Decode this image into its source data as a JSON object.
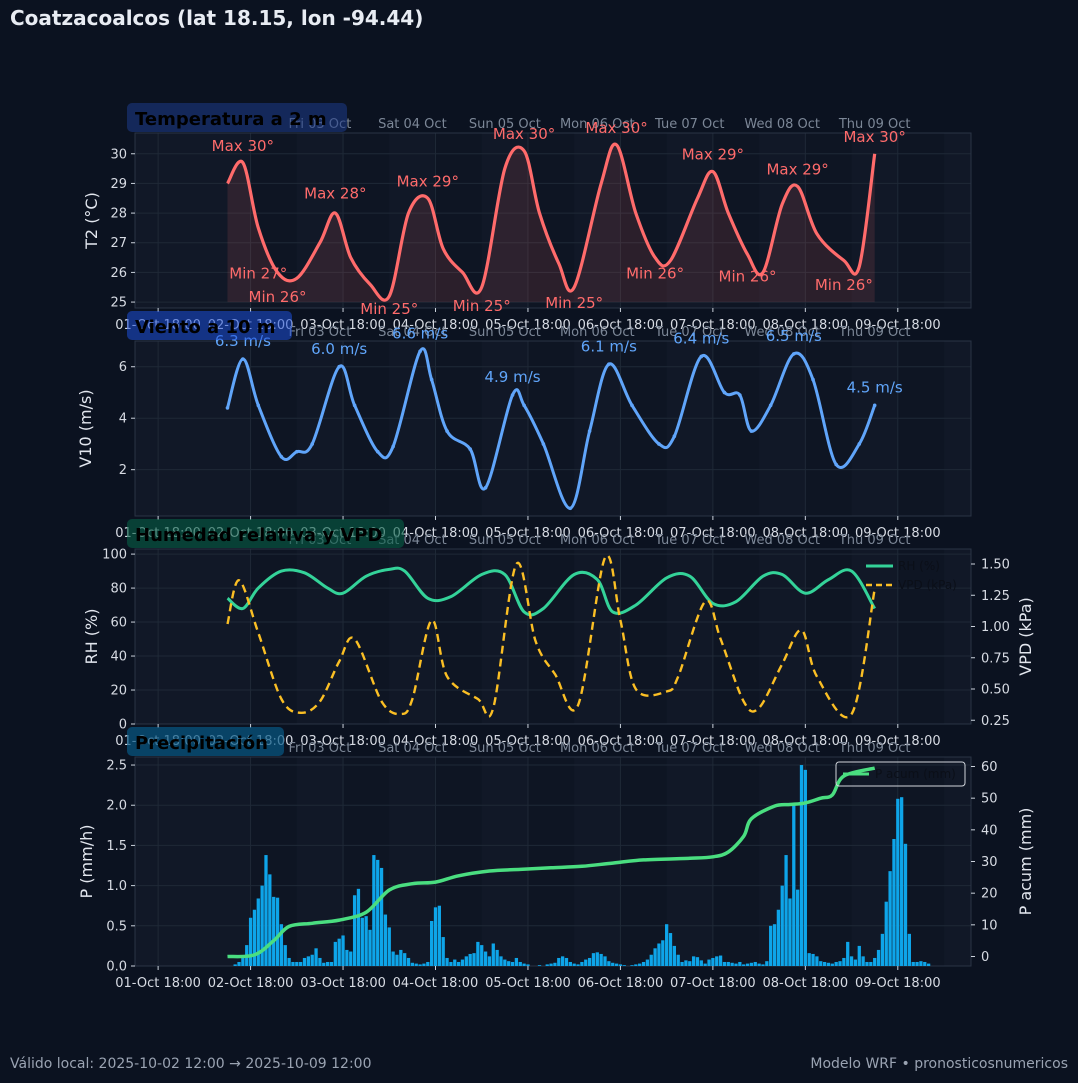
{
  "header": {
    "title": "Coatzacoalcos (lat 18.15, lon -94.44)"
  },
  "footer": {
    "left": "Válido local: 2025-10-02 12:00 → 2025-10-09 12:00",
    "right": "Modelo WRF • pronosticosnumericos"
  },
  "colors": {
    "background": "#0b1220",
    "panel": "#111827",
    "temperature": "#ff6b6b",
    "wind": "#60a5fa",
    "rh": "#34d399",
    "vpd": "#fbbf24",
    "precip_bars": "#0ea5e9",
    "precip_cum": "#4ade80"
  },
  "time_axis": {
    "start": "2025-10-01 12:00",
    "end": "2025-10-10 13:00",
    "first_data": "2025-10-02 12:00",
    "last_data": "2025-10-09 12:00",
    "tick_labels": [
      "01-Oct 18:00",
      "02-Oct 18:00",
      "03-Oct 18:00",
      "04-Oct 18:00",
      "05-Oct 18:00",
      "06-Oct 18:00",
      "07-Oct 18:00",
      "08-Oct 18:00",
      "09-Oct 18:00"
    ],
    "day_labels": [
      "Fri 03 Oct",
      "Sat 04 Oct",
      "Sun 05 Oct",
      "Mon 06 Oct",
      "Tue 07 Oct",
      "Wed 08 Oct",
      "Thu 09 Oct"
    ]
  },
  "chart_data": [
    {
      "type": "line",
      "title": "Temperatura a 2 m",
      "ylabel": "T2 (°C)",
      "ylim": [
        24.8,
        30.7
      ],
      "yticks": [
        25,
        26,
        27,
        28,
        29,
        30
      ],
      "series": [
        {
          "x": [
            "2025-10-02 12:00",
            "2025-10-02 16:00",
            "2025-10-02 20:00",
            "2025-10-03 01:00",
            "2025-10-03 06:00",
            "2025-10-03 12:00",
            "2025-10-03 16:00",
            "2025-10-03 20:00",
            "2025-10-04 01:00",
            "2025-10-04 06:00",
            "2025-10-04 11:00",
            "2025-10-04 16:00",
            "2025-10-04 20:00",
            "2025-10-05 01:00",
            "2025-10-05 06:00",
            "2025-10-05 12:00",
            "2025-10-05 17:00",
            "2025-10-05 21:00",
            "2025-10-06 02:00",
            "2025-10-06 06:00",
            "2025-10-06 13:00",
            "2025-10-06 17:00",
            "2025-10-06 22:00",
            "2025-10-07 03:00",
            "2025-10-07 07:00",
            "2025-10-07 14:00",
            "2025-10-07 18:00",
            "2025-10-07 22:00",
            "2025-10-08 03:00",
            "2025-10-08 07:00",
            "2025-10-08 12:00",
            "2025-10-08 16:00",
            "2025-10-08 21:00",
            "2025-10-09 04:00",
            "2025-10-09 08:00",
            "2025-10-09 12:00"
          ],
          "y": [
            29.0,
            29.7,
            27.5,
            26.0,
            25.8,
            27.0,
            28.0,
            26.5,
            25.6,
            25.2,
            28.0,
            28.5,
            26.8,
            26.0,
            25.5,
            29.5,
            30.1,
            28.0,
            26.3,
            25.5,
            29.0,
            30.3,
            28.0,
            26.5,
            26.4,
            28.5,
            29.4,
            28.0,
            26.6,
            26.0,
            28.3,
            28.9,
            27.3,
            26.4,
            26.2,
            30.0
          ]
        }
      ],
      "annotations": [
        {
          "text": "Max 30°",
          "x": "2025-10-02 16:00",
          "y": 30.1
        },
        {
          "text": "Min 27°",
          "x": "2025-10-02 20:00",
          "y": 25.8
        },
        {
          "text": "Min 26°",
          "x": "2025-10-03 01:00",
          "y": 25.0
        },
        {
          "text": "Max 28°",
          "x": "2025-10-03 16:00",
          "y": 28.5
        },
        {
          "text": "Min 25°",
          "x": "2025-10-04 06:00",
          "y": 24.6
        },
        {
          "text": "Max 29°",
          "x": "2025-10-04 16:00",
          "y": 28.9
        },
        {
          "text": "Min 25°",
          "x": "2025-10-05 06:00",
          "y": 24.7
        },
        {
          "text": "Max 30°",
          "x": "2025-10-05 17:00",
          "y": 30.5
        },
        {
          "text": "Min 25°",
          "x": "2025-10-06 06:00",
          "y": 24.8
        },
        {
          "text": "Max 30°",
          "x": "2025-10-06 17:00",
          "y": 30.7
        },
        {
          "text": "Min 26°",
          "x": "2025-10-07 03:00",
          "y": 25.8
        },
        {
          "text": "Max 29°",
          "x": "2025-10-07 18:00",
          "y": 29.8
        },
        {
          "text": "Min 26°",
          "x": "2025-10-08 03:00",
          "y": 25.7
        },
        {
          "text": "Max 29°",
          "x": "2025-10-08 16:00",
          "y": 29.3
        },
        {
          "text": "Min 26°",
          "x": "2025-10-09 04:00",
          "y": 25.4
        },
        {
          "text": "Max 30°",
          "x": "2025-10-09 12:00",
          "y": 30.4
        }
      ]
    },
    {
      "type": "line",
      "title": "Viento a 10 m",
      "ylabel": "V10 (m/s)",
      "ylim": [
        0.2,
        7.0
      ],
      "yticks": [
        2,
        4,
        6
      ],
      "series": [
        {
          "x": [
            "2025-10-02 12:00",
            "2025-10-02 16:00",
            "2025-10-02 20:00",
            "2025-10-03 02:00",
            "2025-10-03 06:00",
            "2025-10-03 10:00",
            "2025-10-03 17:00",
            "2025-10-03 21:00",
            "2025-10-04 03:00",
            "2025-10-04 07:00",
            "2025-10-04 14:00",
            "2025-10-04 17:00",
            "2025-10-04 21:00",
            "2025-10-05 03:00",
            "2025-10-05 07:00",
            "2025-10-05 14:00",
            "2025-10-05 17:00",
            "2025-10-05 22:00",
            "2025-10-06 05:00",
            "2025-10-06 10:00",
            "2025-10-06 15:00",
            "2025-10-06 21:00",
            "2025-10-07 04:00",
            "2025-10-07 08:00",
            "2025-10-07 15:00",
            "2025-10-07 21:00",
            "2025-10-08 01:00",
            "2025-10-08 04:00",
            "2025-10-08 09:00",
            "2025-10-08 15:00",
            "2025-10-08 20:00",
            "2025-10-09 02:00",
            "2025-10-09 08:00",
            "2025-10-09 12:00"
          ],
          "y": [
            4.4,
            6.3,
            4.5,
            2.5,
            2.7,
            3.0,
            6.0,
            4.5,
            2.7,
            2.9,
            6.6,
            5.5,
            3.5,
            2.8,
            1.3,
            4.9,
            4.5,
            3.0,
            0.5,
            3.5,
            6.1,
            4.5,
            3.0,
            3.3,
            6.4,
            5.0,
            4.9,
            3.5,
            4.5,
            6.5,
            5.5,
            2.2,
            3.0,
            4.5
          ]
        }
      ],
      "annotations": [
        {
          "text": "6.3 m/s",
          "x": "2025-10-02 16:00",
          "y": 6.8
        },
        {
          "text": "6.0 m/s",
          "x": "2025-10-03 17:00",
          "y": 6.5
        },
        {
          "text": "6.6 m/s",
          "x": "2025-10-04 14:00",
          "y": 7.1
        },
        {
          "text": "4.9 m/s",
          "x": "2025-10-05 14:00",
          "y": 5.4
        },
        {
          "text": "6.1 m/s",
          "x": "2025-10-06 15:00",
          "y": 6.6
        },
        {
          "text": "6.4 m/s",
          "x": "2025-10-07 15:00",
          "y": 6.9
        },
        {
          "text": "6.5 m/s",
          "x": "2025-10-08 15:00",
          "y": 7.0
        },
        {
          "text": "4.5 m/s",
          "x": "2025-10-09 12:00",
          "y": 5.0
        }
      ]
    },
    {
      "type": "line",
      "title": "Humedad relativa y VPD",
      "ylabel": "RH (%)",
      "ylabel_right": "VPD (kPa)",
      "ylim": [
        0,
        103
      ],
      "ylim_right": [
        0.22,
        1.62
      ],
      "yticks": [
        0,
        20,
        40,
        60,
        80,
        100
      ],
      "yticks_right": [
        0.25,
        0.5,
        0.75,
        1.0,
        1.25,
        1.5
      ],
      "legend": {
        "position": "top-right",
        "entries": [
          "RH (%)",
          "VPD (kPa)"
        ]
      },
      "series": [
        {
          "name": "RH (%)",
          "axis": "left",
          "x": [
            "2025-10-02 12:00",
            "2025-10-02 16:00",
            "2025-10-02 20:00",
            "2025-10-03 02:00",
            "2025-10-03 08:00",
            "2025-10-03 14:00",
            "2025-10-03 18:00",
            "2025-10-04 00:00",
            "2025-10-04 06:00",
            "2025-10-04 10:00",
            "2025-10-04 16:00",
            "2025-10-04 22:00",
            "2025-10-05 06:00",
            "2025-10-05 12:00",
            "2025-10-05 17:00",
            "2025-10-05 22:00",
            "2025-10-06 06:00",
            "2025-10-06 12:00",
            "2025-10-06 16:00",
            "2025-10-06 22:00",
            "2025-10-07 06:00",
            "2025-10-07 12:00",
            "2025-10-07 18:00",
            "2025-10-08 00:00",
            "2025-10-08 07:00",
            "2025-10-08 12:00",
            "2025-10-08 18:00",
            "2025-10-09 00:00",
            "2025-10-09 06:00",
            "2025-10-09 12:00"
          ],
          "y": [
            74,
            68,
            80,
            90,
            89,
            80,
            77,
            87,
            91,
            90,
            74,
            75,
            88,
            88,
            66,
            68,
            88,
            85,
            66,
            70,
            86,
            87,
            71,
            72,
            87,
            88,
            77,
            85,
            90,
            68
          ]
        },
        {
          "name": "VPD (kPa)",
          "axis": "right",
          "x": [
            "2025-10-02 12:00",
            "2025-10-02 15:00",
            "2025-10-02 20:00",
            "2025-10-03 02:00",
            "2025-10-03 07:00",
            "2025-10-03 12:00",
            "2025-10-03 17:00",
            "2025-10-03 21:00",
            "2025-10-04 04:00",
            "2025-10-04 09:00",
            "2025-10-04 12:00",
            "2025-10-04 17:00",
            "2025-10-04 21:00",
            "2025-10-05 05:00",
            "2025-10-05 09:00",
            "2025-10-05 15:00",
            "2025-10-05 20:00",
            "2025-10-06 01:00",
            "2025-10-06 07:00",
            "2025-10-06 14:00",
            "2025-10-06 18:00",
            "2025-10-06 22:00",
            "2025-10-07 06:00",
            "2025-10-07 09:00",
            "2025-10-07 16:00",
            "2025-10-07 20:00",
            "2025-10-08 02:00",
            "2025-10-08 06:00",
            "2025-10-08 12:00",
            "2025-10-08 17:00",
            "2025-10-08 21:00",
            "2025-10-09 06:00",
            "2025-10-09 12:00"
          ],
          "y": [
            1.02,
            1.37,
            0.95,
            0.42,
            0.31,
            0.4,
            0.72,
            0.9,
            0.4,
            0.3,
            0.42,
            1.05,
            0.6,
            0.42,
            0.35,
            1.5,
            0.88,
            0.62,
            0.37,
            1.55,
            1.05,
            0.5,
            0.48,
            0.6,
            1.2,
            0.9,
            0.4,
            0.35,
            0.7,
            0.97,
            0.6,
            0.3,
            1.3
          ]
        }
      ]
    },
    {
      "type": "bar",
      "title": "Precipitación",
      "ylabel": "P (mm/h)",
      "ylabel_right": "P acum (mm)",
      "ylim": [
        0,
        2.6
      ],
      "ylim_right": [
        -3,
        63
      ],
      "yticks": [
        0.0,
        0.5,
        1.0,
        1.5,
        2.0,
        2.5
      ],
      "yticks_right": [
        0,
        10,
        20,
        30,
        40,
        50,
        60
      ],
      "legend": {
        "position": "top-right",
        "entries": [
          "P acum (mm)"
        ]
      },
      "series": [
        {
          "name": "P (mm/h)",
          "axis": "left",
          "start": "2025-10-02 12:00",
          "step_hours": 1,
          "values": [
            0.0,
            0.0,
            0.02,
            0.05,
            0.1,
            0.26,
            0.6,
            0.7,
            0.84,
            1.0,
            1.38,
            1.14,
            0.86,
            0.85,
            0.52,
            0.26,
            0.1,
            0.05,
            0.05,
            0.05,
            0.1,
            0.12,
            0.14,
            0.22,
            0.1,
            0.04,
            0.05,
            0.05,
            0.3,
            0.34,
            0.38,
            0.2,
            0.18,
            0.88,
            0.96,
            0.6,
            0.62,
            0.45,
            1.38,
            1.32,
            1.22,
            0.64,
            0.48,
            0.18,
            0.14,
            0.2,
            0.16,
            0.1,
            0.04,
            0.03,
            0.02,
            0.03,
            0.05,
            0.56,
            0.73,
            0.75,
            0.36,
            0.1,
            0.05,
            0.08,
            0.05,
            0.08,
            0.12,
            0.15,
            0.16,
            0.3,
            0.26,
            0.18,
            0.12,
            0.28,
            0.2,
            0.12,
            0.08,
            0.06,
            0.05,
            0.1,
            0.05,
            0.03,
            0.02,
            0.0,
            0.0,
            0.01,
            0.0,
            0.02,
            0.03,
            0.04,
            0.1,
            0.12,
            0.1,
            0.05,
            0.03,
            0.02,
            0.05,
            0.08,
            0.1,
            0.16,
            0.17,
            0.15,
            0.12,
            0.06,
            0.04,
            0.03,
            0.02,
            0.01,
            0.0,
            0.01,
            0.02,
            0.03,
            0.05,
            0.08,
            0.14,
            0.22,
            0.28,
            0.32,
            0.52,
            0.41,
            0.25,
            0.14,
            0.05,
            0.07,
            0.06,
            0.12,
            0.11,
            0.07,
            0.03,
            0.08,
            0.1,
            0.12,
            0.13,
            0.05,
            0.05,
            0.04,
            0.03,
            0.05,
            0.02,
            0.03,
            0.04,
            0.05,
            0.03,
            0.02,
            0.06,
            0.5,
            0.52,
            0.7,
            1.0,
            1.38,
            0.84,
            2.0,
            0.95,
            2.5,
            2.44,
            0.16,
            0.15,
            0.12,
            0.06,
            0.05,
            0.04,
            0.03,
            0.05,
            0.06,
            0.1,
            0.3,
            0.12,
            0.08,
            0.25,
            0.12,
            0.05,
            0.05,
            0.1,
            0.2,
            0.4,
            0.8,
            1.18,
            1.58,
            2.08,
            2.1,
            1.52,
            0.4,
            0.05,
            0.05,
            0.06,
            0.05,
            0.03,
            0.0,
            0.0
          ]
        },
        {
          "name": "P acum (mm)",
          "axis": "right",
          "x": [
            "2025-10-02 12:00",
            "2025-10-02 19:00",
            "2025-10-03 00:00",
            "2025-10-03 04:00",
            "2025-10-03 10:00",
            "2025-10-03 17:00",
            "2025-10-04 00:00",
            "2025-10-04 06:00",
            "2025-10-04 12:00",
            "2025-10-04 18:00",
            "2025-10-05 00:00",
            "2025-10-05 08:00",
            "2025-10-05 16:00",
            "2025-10-06 00:00",
            "2025-10-06 08:00",
            "2025-10-06 16:00",
            "2025-10-07 00:00",
            "2025-10-07 12:00",
            "2025-10-07 18:00",
            "2025-10-07 22:00",
            "2025-10-08 02:00",
            "2025-10-08 04:00",
            "2025-10-08 10:00",
            "2025-10-08 14:00",
            "2025-10-08 18:00",
            "2025-10-08 22:00",
            "2025-10-09 01:00",
            "2025-10-09 04:00",
            "2025-10-09 12:00"
          ],
          "y": [
            0.0,
            0.5,
            5.0,
            9.5,
            10.5,
            11.5,
            14.0,
            21.0,
            23.0,
            23.5,
            25.5,
            27.0,
            27.5,
            28.0,
            28.5,
            29.5,
            30.5,
            31.0,
            31.5,
            33.0,
            38.0,
            43.5,
            47.5,
            48.0,
            48.5,
            50.0,
            51.0,
            57.0,
            59.5
          ]
        }
      ]
    }
  ]
}
